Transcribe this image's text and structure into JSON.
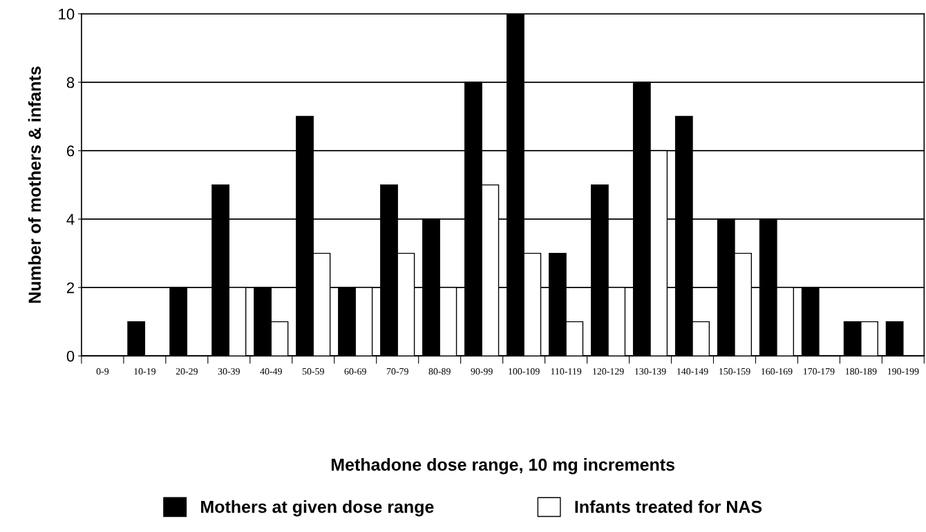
{
  "chart_data": {
    "type": "bar",
    "xlabel": "Methadone dose range, 10 mg increments",
    "ylabel": "Number of mothers & infants",
    "categories": [
      "0-9",
      "10-19",
      "20-29",
      "30-39",
      "40-49",
      "50-59",
      "60-69",
      "70-79",
      "80-89",
      "90-99",
      "100-109",
      "110-119",
      "120-129",
      "130-139",
      "140-149",
      "150-159",
      "160-169",
      "170-179",
      "180-189",
      "190-199"
    ],
    "series": [
      {
        "name": "Mothers at given dose range",
        "color": "#000000",
        "values": [
          0,
          1,
          2,
          5,
          2,
          7,
          2,
          5,
          4,
          8,
          10,
          3,
          5,
          8,
          7,
          4,
          4,
          2,
          1,
          1
        ]
      },
      {
        "name": "Infants treated for NAS",
        "color": "#ffffff",
        "values": [
          0,
          0,
          0,
          2,
          1,
          3,
          2,
          3,
          2,
          5,
          3,
          1,
          2,
          6,
          1,
          3,
          2,
          0,
          1,
          0
        ]
      }
    ],
    "ylim": [
      0,
      10
    ],
    "yticks": [
      0,
      2,
      4,
      6,
      8,
      10
    ],
    "grid": "y",
    "legend": "bottom"
  }
}
